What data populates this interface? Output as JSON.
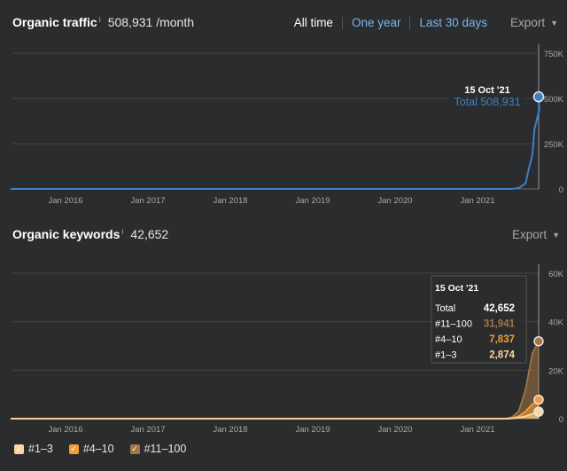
{
  "traffic": {
    "title": "Organic traffic",
    "info": "i",
    "value": "508,931 /month",
    "ranges": [
      "All time",
      "One year",
      "Last 30 days"
    ],
    "export_label": "Export",
    "tooltip_date": "15 Oct '21",
    "tooltip_total": "Total 508,931"
  },
  "keywords": {
    "title": "Organic keywords",
    "info": "i",
    "value": "42,652",
    "export_label": "Export",
    "tooltip": {
      "date": "15 Oct '21",
      "rows": [
        {
          "label": "Total",
          "value": "42,652",
          "color": "#ffffff"
        },
        {
          "label": "#11–100",
          "value": "31,941",
          "color": "#a27744"
        },
        {
          "label": "#4–10",
          "value": "7,837",
          "color": "#f59d38"
        },
        {
          "label": "#1–3",
          "value": "2,874",
          "color": "#fbd59e"
        }
      ]
    }
  },
  "legend": [
    {
      "label": "#1–3",
      "color": "#fbd59e"
    },
    {
      "label": "#4–10",
      "color": "#f59d38"
    },
    {
      "label": "#11–100",
      "color": "#a27744"
    }
  ],
  "icons": {
    "caret": "caret-down-icon",
    "check": "checkmark-icon"
  },
  "chart_data": [
    {
      "type": "line",
      "title": "Organic traffic",
      "x_ticks": [
        "Jan 2016",
        "Jan 2017",
        "Jan 2018",
        "Jan 2019",
        "Jan 2020",
        "Jan 2021"
      ],
      "y_ticks": [
        "750K",
        "500K",
        "250K",
        "0"
      ],
      "ylim": [
        0,
        750000
      ],
      "grid": true,
      "series": [
        {
          "color": "#3b82c4",
          "x": [
            "2015-05",
            "2021-06",
            "2021-07",
            "2021-08",
            "2021-08-15",
            "2021-09-01",
            "2021-09-10",
            "2021-09-20",
            "2021-10-01",
            "2021-10-15"
          ],
          "values": [
            0,
            0,
            5000,
            30000,
            110000,
            190000,
            330000,
            380000,
            440000,
            508931
          ]
        }
      ]
    },
    {
      "type": "area",
      "title": "Organic keywords",
      "x_ticks": [
        "Jan 2016",
        "Jan 2017",
        "Jan 2018",
        "Jan 2019",
        "Jan 2020",
        "Jan 2021"
      ],
      "y_ticks": [
        "60K",
        "40K",
        "20K",
        "0"
      ],
      "ylim": [
        0,
        60000
      ],
      "grid": true,
      "legend_position": "bottom-left",
      "x": [
        "2015-05",
        "2021-05",
        "2021-06",
        "2021-07",
        "2021-08",
        "2021-09",
        "2021-10-15"
      ],
      "series": [
        {
          "name": "#11–100",
          "color": "#a27744",
          "values": [
            0,
            0,
            600,
            3000,
            12000,
            27000,
            31941
          ]
        },
        {
          "name": "#4–10",
          "color": "#f59d38",
          "values": [
            0,
            0,
            200,
            1000,
            3000,
            6000,
            7837
          ]
        },
        {
          "name": "#1–3",
          "color": "#fbd59e",
          "values": [
            0,
            0,
            100,
            400,
            1000,
            2000,
            2874
          ]
        }
      ]
    }
  ]
}
